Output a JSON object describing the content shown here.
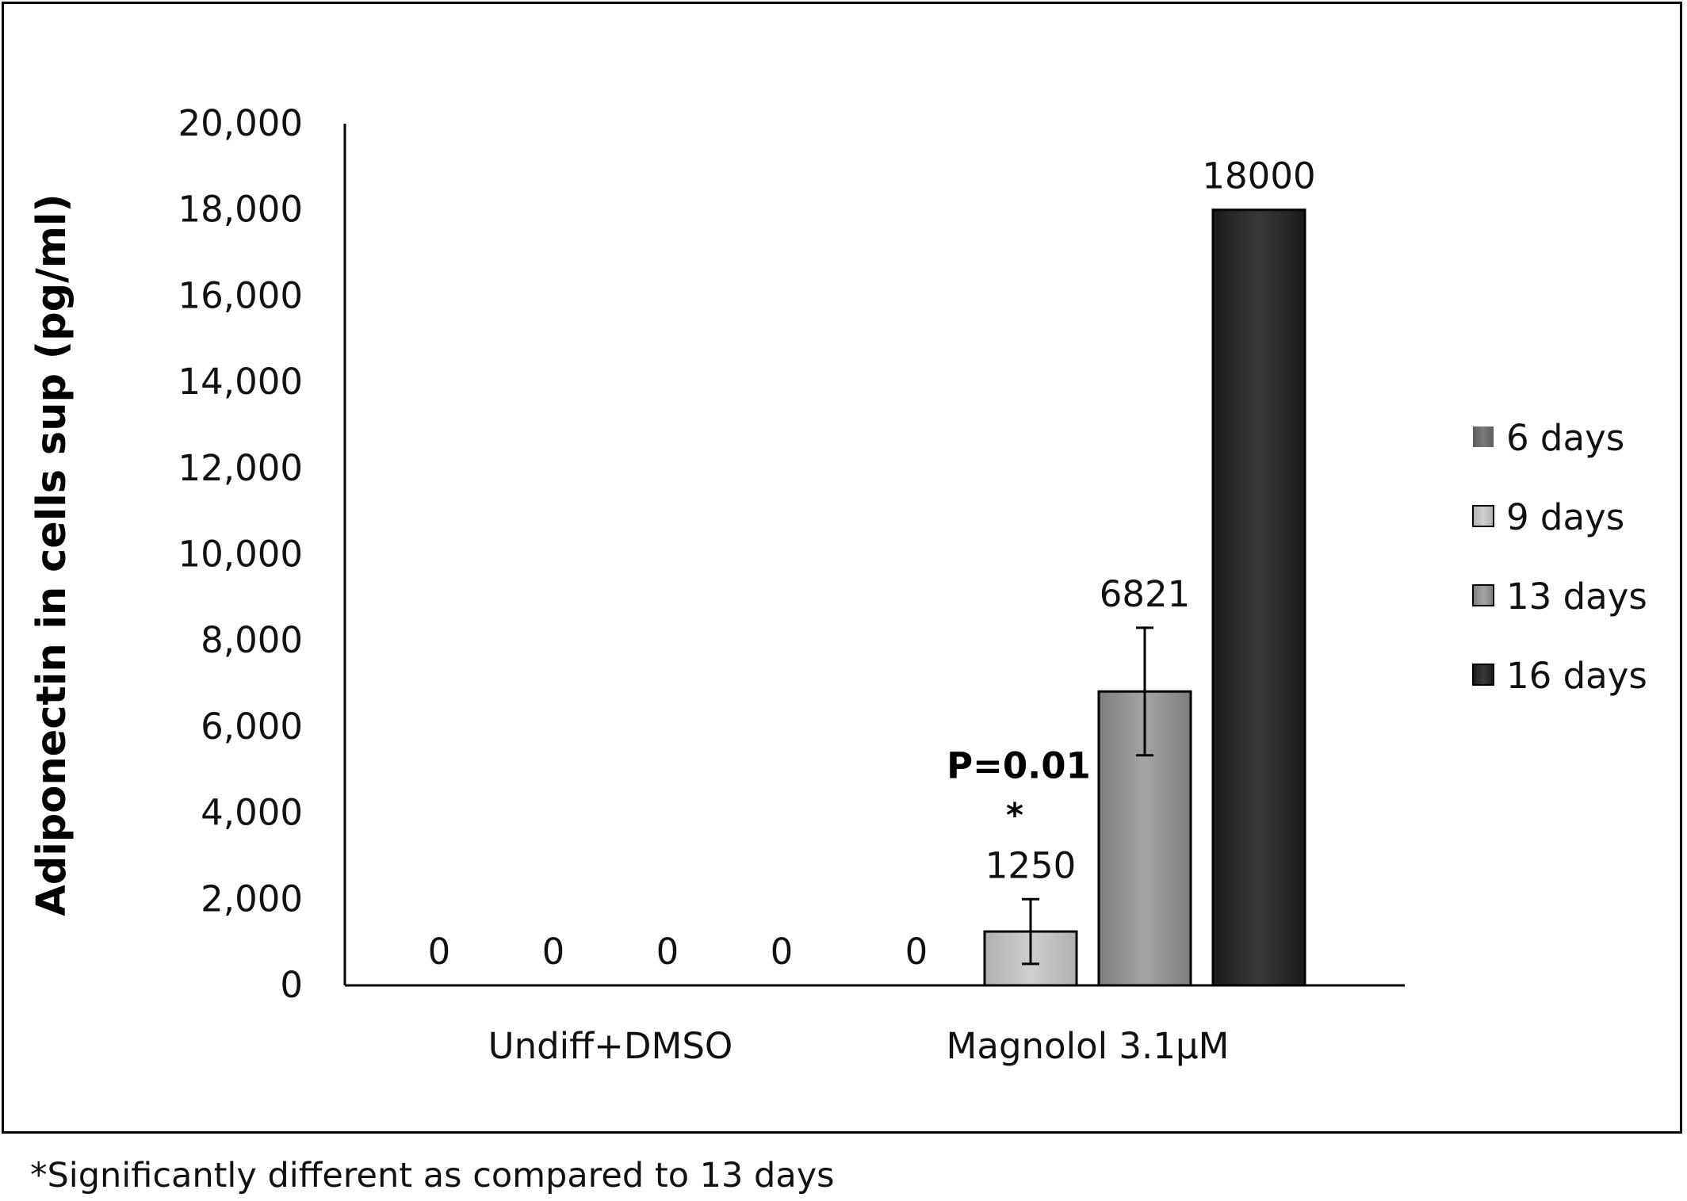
{
  "chart_data": {
    "type": "bar",
    "title": "",
    "xlabel": "",
    "ylabel": "Adiponectin in cells sup (pg/ml)",
    "ylim": [
      0,
      20000
    ],
    "yticks": [
      0,
      2000,
      4000,
      6000,
      8000,
      10000,
      12000,
      14000,
      16000,
      18000,
      20000
    ],
    "ytick_labels": [
      "0",
      "2,000",
      "4,000",
      "6,000",
      "8,000",
      "10,000",
      "12,000",
      "14,000",
      "16,000",
      "18,000",
      "20,000"
    ],
    "categories": [
      "Undiff+DMSO",
      "Magnolol 3.1µM"
    ],
    "series": [
      {
        "name": "6 days",
        "color": "#6b6b6b",
        "values": [
          0,
          0
        ],
        "labels": [
          "0",
          "0"
        ],
        "errors": [
          null,
          null
        ]
      },
      {
        "name": "9 days",
        "color": "#bdbdbd",
        "values": [
          0,
          1250
        ],
        "labels": [
          "0",
          "1250"
        ],
        "errors": [
          null,
          750
        ]
      },
      {
        "name": "13 days",
        "color": "#8f8f8f",
        "values": [
          0,
          6821
        ],
        "labels": [
          "0",
          "6821"
        ],
        "errors": [
          null,
          1480
        ]
      },
      {
        "name": "16 days",
        "color": "#262626",
        "values": [
          0,
          18000
        ],
        "labels": [
          "0",
          "18000"
        ],
        "errors": [
          null,
          null
        ]
      }
    ],
    "grid": false,
    "legend_position": "right",
    "annotations": [
      {
        "text": "P=0.01",
        "series": "9 days",
        "category": "Magnolol 3.1µM",
        "bold": true
      },
      {
        "text": "*",
        "series": "9 days",
        "category": "Magnolol 3.1µM",
        "bold": true
      }
    ]
  },
  "footnote": "*Significantly different as compared to 13 days"
}
